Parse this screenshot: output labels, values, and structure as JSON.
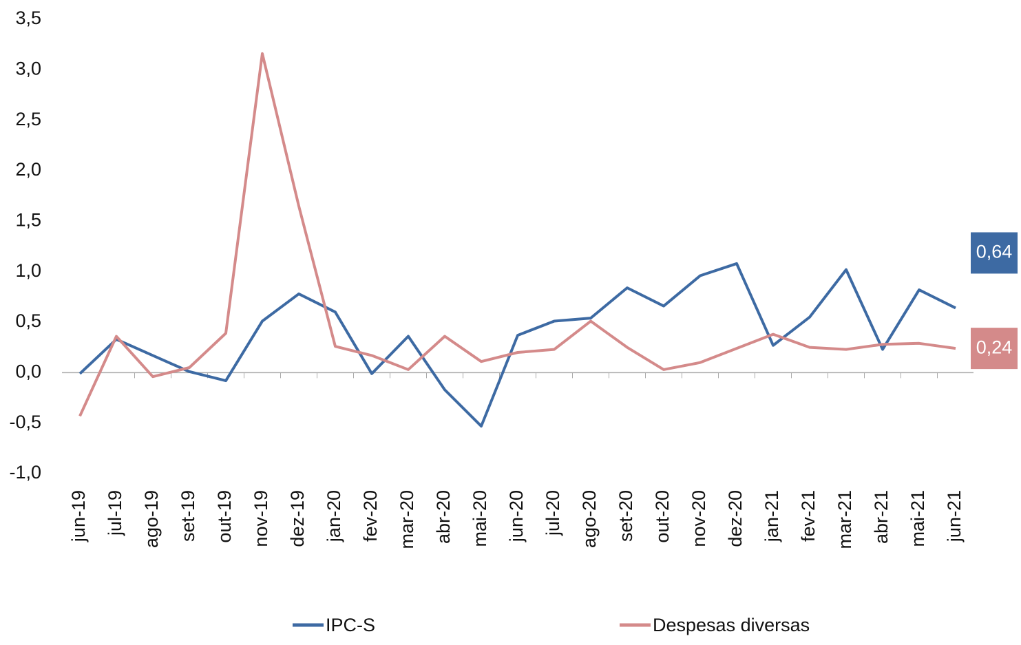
{
  "chart_data": {
    "type": "line",
    "categories": [
      "jun-19",
      "jul-19",
      "ago-19",
      "set-19",
      "out-19",
      "nov-19",
      "dez-19",
      "jan-20",
      "fev-20",
      "mar-20",
      "abr-20",
      "mai-20",
      "jun-20",
      "jul-20",
      "ago-20",
      "set-20",
      "out-20",
      "nov-20",
      "dez-20",
      "jan-21",
      "fev-21",
      "mar-21",
      "abr-21",
      "mai-21",
      "jun-21"
    ],
    "series": [
      {
        "name": "IPC-S",
        "color": "#3d6aa3",
        "values": [
          -0.01,
          0.33,
          0.17,
          0.01,
          -0.08,
          0.51,
          0.78,
          0.6,
          -0.01,
          0.36,
          -0.17,
          -0.53,
          0.37,
          0.51,
          0.54,
          0.84,
          0.66,
          0.96,
          1.08,
          0.27,
          0.55,
          1.02,
          0.23,
          0.82,
          0.64
        ],
        "value_labels": [
          null,
          null,
          null,
          null,
          null,
          null,
          null,
          null,
          null,
          null,
          null,
          null,
          null,
          null,
          null,
          null,
          null,
          null,
          null,
          null,
          null,
          null,
          null,
          null,
          "0,64"
        ]
      },
      {
        "name": "Despesas diversas",
        "color": "#d48a8a",
        "values": [
          -0.43,
          0.36,
          -0.04,
          0.05,
          0.39,
          3.16,
          1.65,
          0.26,
          0.17,
          0.03,
          0.36,
          0.11,
          0.2,
          0.23,
          0.51,
          0.25,
          0.03,
          0.1,
          0.24,
          0.38,
          0.25,
          0.23,
          0.28,
          0.29,
          0.24
        ],
        "value_labels": [
          null,
          null,
          null,
          null,
          null,
          null,
          null,
          null,
          null,
          null,
          null,
          null,
          null,
          null,
          null,
          null,
          null,
          null,
          null,
          null,
          null,
          null,
          null,
          null,
          "0,24"
        ]
      }
    ],
    "ylim": [
      -1,
      3.5
    ],
    "yticks": [
      {
        "value": -1,
        "label": "-1,0"
      },
      {
        "value": -0.5,
        "label": "-0,5"
      },
      {
        "value": 0,
        "label": "0,0"
      },
      {
        "value": 0.5,
        "label": "0,5"
      },
      {
        "value": 1,
        "label": "1,0"
      },
      {
        "value": 1.5,
        "label": "1,5"
      },
      {
        "value": 2,
        "label": "2,0"
      },
      {
        "value": 2.5,
        "label": "2,5"
      },
      {
        "value": 3,
        "label": "3,0"
      },
      {
        "value": 3.5,
        "label": "3,5"
      }
    ],
    "grid": false,
    "legend": "bottom"
  }
}
